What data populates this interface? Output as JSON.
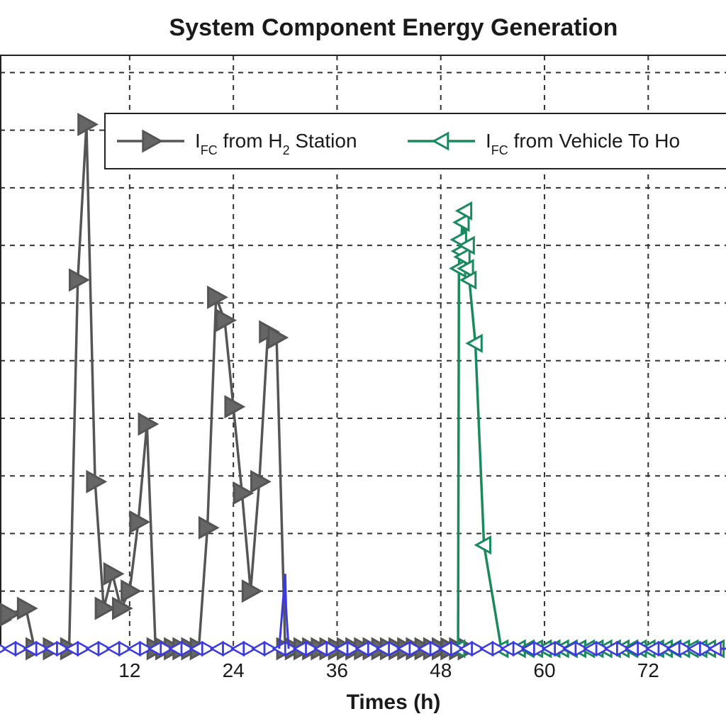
{
  "chart_data": {
    "type": "line",
    "title": "System Component Energy Generation",
    "xlabel": "Times (h)",
    "ylabel": "",
    "xlim": [
      -3,
      81
    ],
    "ylim": [
      0,
      10.3
    ],
    "xticks": [
      12,
      24,
      36,
      48,
      60,
      72
    ],
    "xtick_labels": [
      "12",
      "24",
      "36",
      "48",
      "60",
      "72"
    ],
    "yticks": [
      1,
      2,
      3,
      4,
      5,
      6,
      7,
      8,
      9,
      10
    ],
    "grid": true,
    "legend_position": "top-right",
    "series": [
      {
        "name": "I",
        "name_subscript": "FC",
        "name_suffix": " from H",
        "name_suffix_subscript": "2",
        "name_tail": " Station",
        "color": "#555555",
        "marker": "triangle-right",
        "x": [
          -3,
          -2,
          0,
          1,
          3,
          5,
          6,
          7,
          8,
          9,
          10,
          11,
          12,
          13,
          14,
          15,
          16,
          17,
          18,
          19,
          20,
          21,
          22,
          23,
          24,
          25,
          26,
          27,
          28,
          29,
          30,
          31,
          32,
          33,
          34,
          35,
          36,
          37,
          38,
          39,
          40,
          41,
          42,
          43,
          44,
          45,
          46,
          47,
          48,
          49,
          50,
          51
        ],
        "y": [
          0.5,
          0.6,
          0.7,
          0,
          0,
          0,
          6.4,
          9.1,
          2.9,
          0.7,
          1.3,
          0.7,
          1.0,
          2.2,
          3.9,
          0,
          0,
          0,
          0,
          0,
          0,
          2.1,
          6.1,
          5.7,
          4.2,
          2.7,
          1.0,
          2.9,
          5.5,
          5.4,
          0,
          0,
          0,
          0,
          0,
          0,
          0,
          0,
          0,
          0,
          0,
          0,
          0,
          0,
          0,
          0,
          0,
          0,
          0,
          0,
          0,
          0
        ]
      },
      {
        "name": "I",
        "name_subscript": "FC",
        "name_suffix": " from Vehicle To Ho",
        "color": "#1a8a5e",
        "marker": "triangle-left",
        "x": [
          50,
          50.1,
          50.2,
          50.3,
          50.5,
          50.6,
          50.8,
          51,
          51.1,
          51.3,
          52,
          53,
          55,
          57,
          58,
          59,
          60,
          61,
          62,
          63,
          64,
          65,
          66,
          67,
          68,
          69,
          70,
          71,
          72,
          73,
          74,
          75,
          76,
          77,
          78,
          79,
          80
        ],
        "y": [
          0,
          6.6,
          7.1,
          6.9,
          7.4,
          6.8,
          7.6,
          6.6,
          7.0,
          6.4,
          5.3,
          1.8,
          0,
          0,
          0,
          0,
          0,
          0,
          0,
          0,
          0,
          0,
          0,
          0,
          0,
          0,
          0,
          0,
          0,
          0,
          0,
          0,
          0,
          0,
          0,
          0,
          0
        ]
      }
    ]
  },
  "legend": {
    "entries": [
      {
        "main": "I",
        "sub": "FC",
        "mid": " from H",
        "sub2": "2",
        "tail": " Station"
      },
      {
        "main": "I",
        "sub": "FC",
        "mid": " from Vehicle To Ho",
        "sub2": "",
        "tail": ""
      }
    ]
  }
}
